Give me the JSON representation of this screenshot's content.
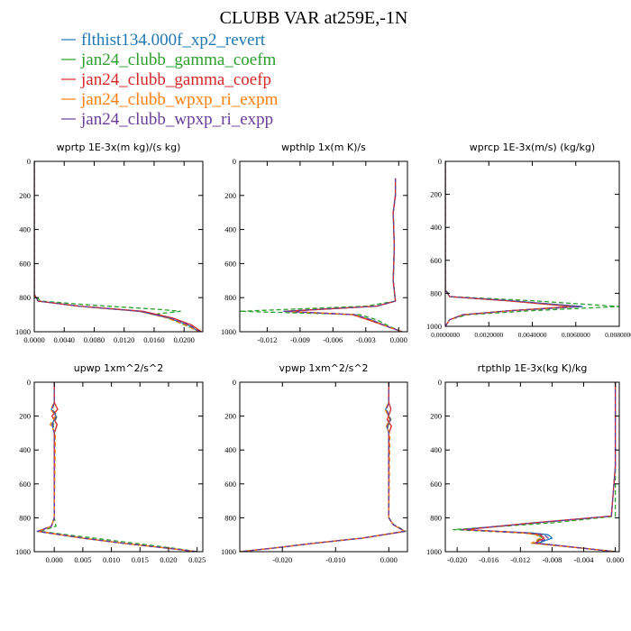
{
  "figure": {
    "title": "CLUBB VAR at259E,-1N"
  },
  "legend": [
    {
      "label": "flthist134.000f_xp2_revert",
      "color": "#1f77b4",
      "dash": ""
    },
    {
      "label": "jan24_clubb_gamma_coefm",
      "color": "#2ca02c",
      "dash": "5,3"
    },
    {
      "label": "jan24_clubb_gamma_coefp",
      "color": "#d62728",
      "dash": ""
    },
    {
      "label": "jan24_clubb_wpxp_ri_expm",
      "color": "#ff7f0e",
      "dash": "5,3"
    },
    {
      "label": "jan24_clubb_wpxp_ri_expp",
      "color": "#6a3d9a",
      "dash": "5,3"
    }
  ],
  "chart_data": [
    {
      "type": "line",
      "title": "wprtp  1E-3x(m kg)/(s kg)",
      "xlim": [
        0,
        0.0225
      ],
      "ylim": [
        1000,
        0
      ],
      "xticks": [
        0,
        0.004,
        0.008,
        0.012,
        0.016,
        0.02
      ],
      "xticklabels": [
        "0.0000",
        "0.0040",
        "0.0080",
        "0.0120",
        "0.0160",
        "0.0200"
      ],
      "yticks": [
        0,
        200,
        400,
        600,
        800,
        1000
      ],
      "series": [
        {
          "x": [
            0,
            0,
            0,
            0.0005,
            0.006,
            0.014,
            0.018,
            0.0205,
            0.022
          ],
          "y": [
            0,
            400,
            780,
            820,
            850,
            880,
            920,
            960,
            1000
          ]
        },
        {
          "x": [
            0,
            0,
            0,
            0.0008,
            0.008,
            0.017,
            0.0195,
            0.0165,
            0.0195,
            0.0222
          ],
          "y": [
            0,
            400,
            780,
            820,
            845,
            870,
            880,
            895,
            950,
            1000
          ]
        },
        {
          "x": [
            0,
            0,
            0,
            0.0005,
            0.006,
            0.0145,
            0.0185,
            0.021,
            0.0223
          ],
          "y": [
            0,
            400,
            780,
            820,
            850,
            880,
            920,
            960,
            1000
          ]
        },
        {
          "x": [
            0,
            0,
            0,
            0.0005,
            0.0058,
            0.014,
            0.0178,
            0.0202,
            0.0219
          ],
          "y": [
            0,
            400,
            780,
            820,
            850,
            880,
            920,
            960,
            1000
          ]
        },
        {
          "x": [
            0,
            0,
            0,
            0.0005,
            0.0059,
            0.0142,
            0.0182,
            0.0207,
            0.0221
          ],
          "y": [
            0,
            400,
            780,
            820,
            850,
            880,
            920,
            960,
            1000
          ]
        }
      ]
    },
    {
      "type": "line",
      "title": "wpthlp  1x(m K)/s",
      "xlim": [
        -0.0145,
        0.0008
      ],
      "ylim": [
        1000,
        0
      ],
      "xticks": [
        -0.012,
        -0.009,
        -0.006,
        -0.003,
        0
      ],
      "xticklabels": [
        "-0.012",
        "-0.009",
        "-0.006",
        "-0.003",
        "0.000"
      ],
      "yticks": [
        0,
        200,
        400,
        600,
        800,
        1000
      ],
      "series": [
        {
          "x": [
            -0.0003,
            -0.0003,
            -0.0005,
            -0.0004,
            -0.0005,
            -0.0003,
            -0.002,
            -0.0105,
            -0.004,
            -0.0025,
            -0.001,
            0.0003
          ],
          "y": [
            100,
            200,
            300,
            500,
            700,
            820,
            850,
            880,
            900,
            930,
            970,
            1000
          ]
        },
        {
          "x": [
            -0.0003,
            -0.0003,
            -0.0005,
            -0.0004,
            -0.0005,
            -0.0003,
            -0.003,
            -0.0145,
            -0.0035,
            -0.002,
            -0.0008,
            0.0003
          ],
          "y": [
            100,
            200,
            300,
            500,
            700,
            820,
            850,
            880,
            900,
            930,
            970,
            1000
          ]
        },
        {
          "x": [
            -0.0003,
            -0.0003,
            -0.0005,
            -0.0004,
            -0.0005,
            -0.0003,
            -0.002,
            -0.0102,
            -0.0042,
            -0.0028,
            -0.001,
            0.0003
          ],
          "y": [
            100,
            200,
            300,
            500,
            700,
            820,
            850,
            880,
            900,
            930,
            970,
            1000
          ]
        },
        {
          "x": [
            -0.0003,
            -0.0003,
            -0.0005,
            -0.0004,
            -0.0005,
            -0.0003,
            -0.002,
            -0.0103,
            -0.0041,
            -0.0026,
            -0.001,
            0.0003
          ],
          "y": [
            100,
            200,
            300,
            500,
            700,
            820,
            850,
            880,
            900,
            930,
            970,
            1000
          ]
        },
        {
          "x": [
            -0.0003,
            -0.0003,
            -0.0005,
            -0.0004,
            -0.0005,
            -0.0003,
            -0.002,
            -0.0104,
            -0.004,
            -0.0025,
            -0.001,
            0.0003
          ],
          "y": [
            100,
            200,
            300,
            500,
            700,
            820,
            850,
            880,
            900,
            930,
            970,
            1000
          ]
        }
      ]
    },
    {
      "type": "line",
      "title": "wprcp  1E-3x(m/s) (kg/kg)",
      "xlim": [
        0,
        0.008
      ],
      "ylim": [
        1000,
        0
      ],
      "xticks": [
        0,
        0.002,
        0.004,
        0.006,
        0.008
      ],
      "xticklabels": [
        "0.0000000",
        "0.0020000",
        "0.0040000",
        "0.0060000",
        "0.0080000"
      ],
      "yticks": [
        0,
        200,
        400,
        600,
        800,
        1000
      ],
      "series": [
        {
          "x": [
            0,
            0,
            0,
            0.0002,
            0.003,
            0.0063,
            0.003,
            0.0008,
            0.0002,
            0
          ],
          "y": [
            0,
            400,
            780,
            820,
            845,
            880,
            905,
            930,
            960,
            1000
          ]
        },
        {
          "x": [
            0,
            0,
            0,
            0.0003,
            0.004,
            0.008,
            0.004,
            0.001,
            0.0002,
            0
          ],
          "y": [
            0,
            400,
            780,
            820,
            845,
            880,
            905,
            930,
            960,
            1000
          ]
        },
        {
          "x": [
            0,
            0,
            0,
            0.0002,
            0.0028,
            0.0058,
            0.003,
            0.0008,
            0.0002,
            0
          ],
          "y": [
            0,
            400,
            780,
            820,
            845,
            880,
            905,
            930,
            960,
            1000
          ]
        },
        {
          "x": [
            0,
            0,
            0,
            0.0002,
            0.0029,
            0.006,
            0.003,
            0.0008,
            0.0002,
            0
          ],
          "y": [
            0,
            400,
            780,
            820,
            845,
            880,
            905,
            930,
            960,
            1000
          ]
        },
        {
          "x": [
            0,
            0,
            0,
            0.0002,
            0.003,
            0.0062,
            0.003,
            0.0008,
            0.0002,
            0
          ],
          "y": [
            0,
            400,
            780,
            820,
            845,
            880,
            905,
            930,
            960,
            1000
          ]
        }
      ]
    },
    {
      "type": "line",
      "title": "upwp  1xm^2/s^2",
      "xlim": [
        -0.0035,
        0.026
      ],
      "ylim": [
        1000,
        0
      ],
      "xticks": [
        0,
        0.005,
        0.01,
        0.015,
        0.02,
        0.025
      ],
      "xticklabels": [
        "0.000",
        "0.005",
        "0.010",
        "0.015",
        "0.020",
        "0.025"
      ],
      "yticks": [
        0,
        200,
        400,
        600,
        800,
        1000
      ],
      "series": [
        {
          "x": [
            0,
            0,
            -0.0005,
            0.0003,
            -0.0004,
            0,
            0,
            -0.0005,
            -0.003,
            0.005,
            0.012,
            0.02,
            0.025
          ],
          "y": [
            0,
            120,
            160,
            200,
            250,
            300,
            800,
            850,
            880,
            920,
            950,
            980,
            1000
          ]
        },
        {
          "x": [
            0,
            0,
            -0.0003,
            0.0005,
            -0.0002,
            0,
            0,
            0.0003,
            -0.0025,
            0.007,
            0.014,
            0.021,
            0.025
          ],
          "y": [
            0,
            120,
            160,
            200,
            250,
            300,
            800,
            850,
            880,
            920,
            950,
            980,
            1000
          ]
        },
        {
          "x": [
            0,
            0,
            0.0006,
            -0.0004,
            0.0005,
            0,
            0,
            -0.0005,
            -0.0028,
            0.005,
            0.012,
            0.02,
            0.025
          ],
          "y": [
            0,
            120,
            160,
            200,
            250,
            300,
            800,
            850,
            880,
            920,
            950,
            980,
            1000
          ]
        },
        {
          "x": [
            0,
            0,
            -0.0006,
            0.0002,
            -0.0007,
            0.0002,
            0,
            -0.0005,
            -0.003,
            0.005,
            0.012,
            0.02,
            0.025
          ],
          "y": [
            0,
            120,
            160,
            200,
            250,
            300,
            800,
            850,
            880,
            920,
            950,
            980,
            1000
          ]
        },
        {
          "x": [
            0,
            0,
            -0.0004,
            0.0004,
            -0.0003,
            0,
            0,
            -0.0005,
            -0.0029,
            0.005,
            0.012,
            0.02,
            0.025
          ],
          "y": [
            0,
            120,
            160,
            200,
            250,
            300,
            800,
            850,
            880,
            920,
            950,
            980,
            1000
          ]
        }
      ]
    },
    {
      "type": "line",
      "title": "vpwp  1xm^2/s^2",
      "xlim": [
        -0.028,
        0.0035
      ],
      "ylim": [
        1000,
        0
      ],
      "xticks": [
        -0.02,
        -0.01,
        0
      ],
      "xticklabels": [
        "-0.020",
        "-0.010",
        "0.000"
      ],
      "yticks": [
        0,
        200,
        400,
        600,
        800,
        1000
      ],
      "series": [
        {
          "x": [
            0,
            0,
            -0.0006,
            0.0003,
            -0.0004,
            0,
            0,
            0.0008,
            0.003,
            -0.005,
            -0.014,
            -0.022,
            -0.028
          ],
          "y": [
            0,
            120,
            160,
            220,
            260,
            300,
            800,
            840,
            880,
            920,
            950,
            980,
            1000
          ]
        },
        {
          "x": [
            0,
            0,
            -0.0005,
            0.0004,
            -0.0002,
            0,
            0,
            0.0009,
            0.0032,
            -0.005,
            -0.014,
            -0.022,
            -0.028
          ],
          "y": [
            0,
            120,
            160,
            220,
            260,
            300,
            800,
            840,
            880,
            920,
            950,
            980,
            1000
          ]
        },
        {
          "x": [
            0,
            0,
            0.0004,
            -0.0003,
            0.0005,
            0,
            0,
            0.0008,
            0.003,
            -0.005,
            -0.014,
            -0.022,
            -0.028
          ],
          "y": [
            0,
            120,
            160,
            220,
            260,
            300,
            800,
            840,
            880,
            920,
            950,
            980,
            1000
          ]
        },
        {
          "x": [
            0,
            0,
            -0.0007,
            0.0002,
            -0.0005,
            0.0002,
            0,
            0.0008,
            0.003,
            -0.005,
            -0.014,
            -0.022,
            -0.028
          ],
          "y": [
            0,
            120,
            160,
            220,
            260,
            300,
            800,
            840,
            880,
            920,
            950,
            980,
            1000
          ]
        },
        {
          "x": [
            0,
            0,
            -0.0004,
            0.0003,
            -0.0003,
            0,
            0,
            0.0008,
            0.003,
            -0.005,
            -0.014,
            -0.022,
            -0.028
          ],
          "y": [
            0,
            120,
            160,
            220,
            260,
            300,
            800,
            840,
            880,
            920,
            950,
            980,
            1000
          ]
        }
      ]
    },
    {
      "type": "line",
      "title": "rtpthlp  1E-3x(kg K)/kg",
      "xlim": [
        -0.0215,
        0.0005
      ],
      "ylim": [
        1000,
        0
      ],
      "xticks": [
        -0.02,
        -0.016,
        -0.012,
        -0.008,
        -0.004,
        0
      ],
      "xticklabels": [
        "-0.020",
        "-0.016",
        "-0.012",
        "-0.008",
        "-0.004",
        "0.000"
      ],
      "yticks": [
        0,
        200,
        400,
        600,
        800,
        1000
      ],
      "series": [
        {
          "x": [
            0,
            0,
            -0.0005,
            -0.01,
            -0.0195,
            -0.0105,
            -0.0085,
            -0.008,
            -0.0098,
            -0.004,
            0
          ],
          "y": [
            0,
            500,
            790,
            830,
            870,
            890,
            900,
            920,
            950,
            980,
            1000
          ]
        },
        {
          "x": [
            0,
            0,
            0,
            -0.008,
            -0.0205,
            -0.0115,
            -0.0098,
            -0.0092,
            -0.0105,
            -0.004,
            0
          ],
          "y": [
            0,
            500,
            790,
            830,
            870,
            890,
            900,
            920,
            950,
            980,
            1000
          ]
        },
        {
          "x": [
            0,
            0,
            -0.0005,
            -0.0105,
            -0.019,
            -0.011,
            -0.0095,
            -0.009,
            -0.0102,
            -0.004,
            0
          ],
          "y": [
            0,
            500,
            790,
            830,
            870,
            890,
            900,
            920,
            950,
            980,
            1000
          ]
        },
        {
          "x": [
            0,
            0,
            -0.0005,
            -0.0102,
            -0.0192,
            -0.0115,
            -0.01,
            -0.0095,
            -0.0106,
            -0.004,
            0
          ],
          "y": [
            0,
            500,
            790,
            830,
            870,
            890,
            900,
            920,
            950,
            980,
            1000
          ]
        },
        {
          "x": [
            0,
            0,
            -0.0005,
            -0.0101,
            -0.0194,
            -0.0108,
            -0.009,
            -0.0085,
            -0.01,
            -0.004,
            0
          ],
          "y": [
            0,
            500,
            790,
            830,
            870,
            890,
            900,
            920,
            950,
            980,
            1000
          ]
        }
      ]
    }
  ]
}
